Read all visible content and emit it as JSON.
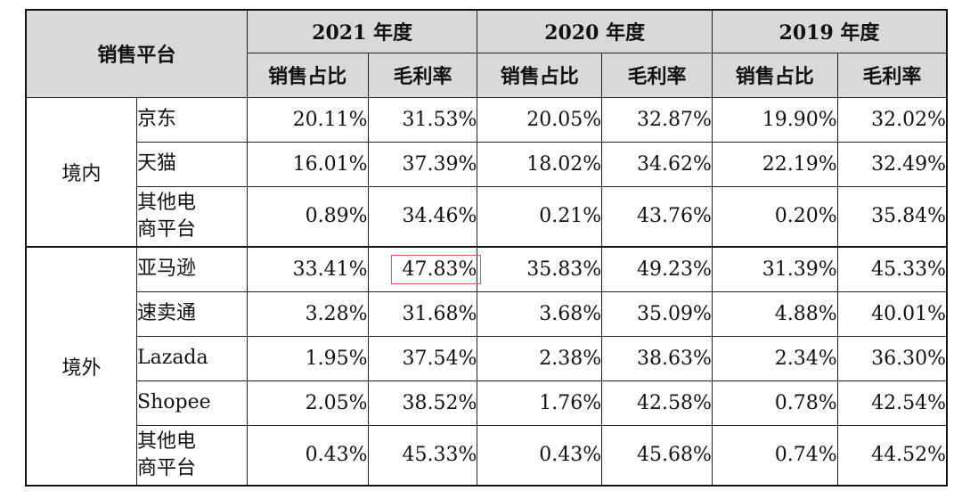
{
  "header": {
    "platform_label": "销售平台",
    "years": [
      "2021 年度",
      "2020 年度",
      "2019 年度"
    ],
    "sales_share_label": "销售占比",
    "gross_margin_label": "毛利率"
  },
  "groups": [
    {
      "region": "境内",
      "rows": [
        {
          "platform": "京东",
          "values": [
            "20.11%",
            "31.53%",
            "20.05%",
            "32.87%",
            "19.90%",
            "32.02%"
          ]
        },
        {
          "platform": "天猫",
          "values": [
            "16.01%",
            "37.39%",
            "18.02%",
            "34.62%",
            "22.19%",
            "32.49%"
          ]
        },
        {
          "platform_lines": [
            "其他电",
            "商平台"
          ],
          "values": [
            "0.89%",
            "34.46%",
            "0.21%",
            "43.76%",
            "0.20%",
            "35.84%"
          ]
        }
      ]
    },
    {
      "region": "境外",
      "rows": [
        {
          "platform": "亚马逊",
          "values": [
            "33.41%",
            "47.83%",
            "35.83%",
            "49.23%",
            "31.39%",
            "45.33%"
          ]
        },
        {
          "platform": "速卖通",
          "values": [
            "3.28%",
            "31.68%",
            "3.68%",
            "35.09%",
            "4.88%",
            "40.01%"
          ]
        },
        {
          "platform": "Lazada",
          "values": [
            "1.95%",
            "37.54%",
            "2.38%",
            "38.63%",
            "2.34%",
            "36.30%"
          ]
        },
        {
          "platform": "Shopee",
          "values": [
            "2.05%",
            "38.52%",
            "1.76%",
            "42.58%",
            "0.78%",
            "42.54%"
          ]
        },
        {
          "platform_lines": [
            "其他电",
            "商平台"
          ],
          "values": [
            "0.43%",
            "45.33%",
            "0.43%",
            "45.68%",
            "0.74%",
            "44.52%"
          ]
        }
      ]
    }
  ],
  "colors": {
    "header_bg": "#d9d9d9",
    "highlight_border": "#e05555"
  }
}
